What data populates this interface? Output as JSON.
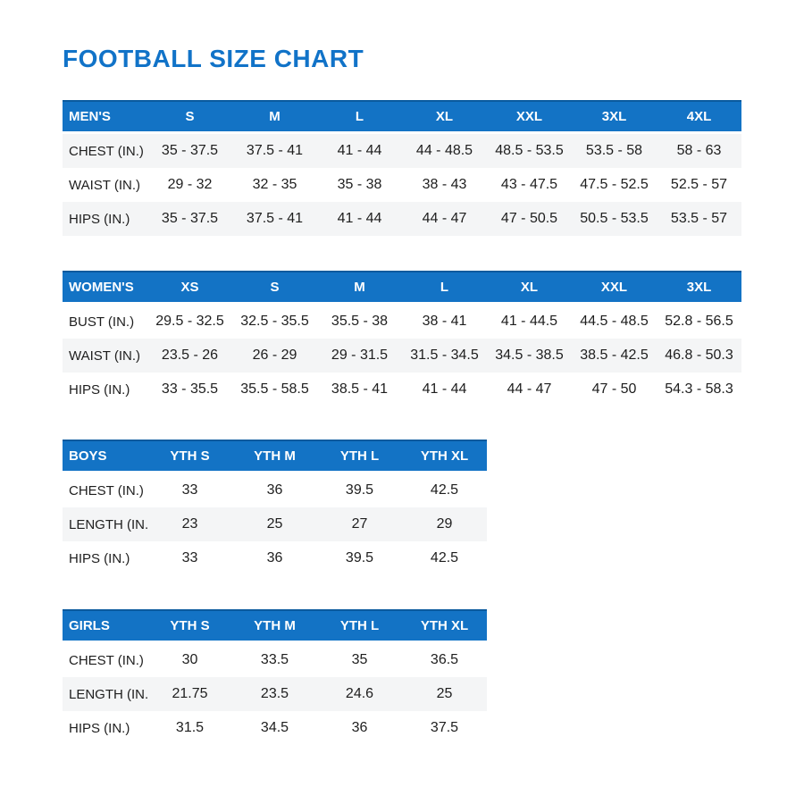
{
  "page": {
    "title": "FOOTBALL SIZE CHART"
  },
  "colors": {
    "title_blue": "#1173c8",
    "header_blue": "#1373c5",
    "header_top_border": "#0a5a9e",
    "stripe_gray": "#f4f5f6",
    "text_dark": "#1e1e1e"
  },
  "tables": [
    {
      "group_label": "MEN'S",
      "columns": [
        "S",
        "M",
        "L",
        "XL",
        "XXL",
        "3XL",
        "4XL"
      ],
      "rows": [
        {
          "label": "CHEST (IN.)",
          "values": [
            "35 - 37.5",
            "37.5 - 41",
            "41 - 44",
            "44 - 48.5",
            "48.5 - 53.5",
            "53.5 - 58",
            "58 - 63"
          ]
        },
        {
          "label": "WAIST (IN.)",
          "values": [
            "29 - 32",
            "32 - 35",
            "35 - 38",
            "38 - 43",
            "43 - 47.5",
            "47.5 - 52.5",
            "52.5 - 57"
          ]
        },
        {
          "label": "HIPS (IN.)",
          "values": [
            "35 - 37.5",
            "37.5 - 41",
            "41 - 44",
            "44 - 47",
            "47 - 50.5",
            "50.5 - 53.5",
            "53.5 - 57"
          ]
        }
      ]
    },
    {
      "group_label": "WOMEN'S",
      "columns": [
        "XS",
        "S",
        "M",
        "L",
        "XL",
        "XXL",
        "3XL"
      ],
      "rows": [
        {
          "label": "BUST (IN.)",
          "values": [
            "29.5 - 32.5",
            "32.5 - 35.5",
            "35.5 - 38",
            "38 - 41",
            "41 - 44.5",
            "44.5 - 48.5",
            "52.8 - 56.5"
          ]
        },
        {
          "label": "WAIST (IN.)",
          "values": [
            "23.5 - 26",
            "26 - 29",
            "29 - 31.5",
            "31.5 - 34.5",
            "34.5 - 38.5",
            "38.5 - 42.5",
            "46.8 - 50.3"
          ]
        },
        {
          "label": "HIPS (IN.)",
          "values": [
            "33 - 35.5",
            "35.5 - 58.5",
            "38.5 - 41",
            "41 - 44",
            "44 - 47",
            "47 - 50",
            "54.3 - 58.3"
          ]
        }
      ]
    },
    {
      "group_label": "BOYS",
      "columns": [
        "YTH S",
        "YTH M",
        "YTH L",
        "YTH XL"
      ],
      "rows": [
        {
          "label": "CHEST (IN.)",
          "values": [
            "33",
            "36",
            "39.5",
            "42.5"
          ]
        },
        {
          "label": "LENGTH (IN.)",
          "values": [
            "23",
            "25",
            "27",
            "29"
          ]
        },
        {
          "label": "HIPS (IN.)",
          "values": [
            "33",
            "36",
            "39.5",
            "42.5"
          ]
        }
      ]
    },
    {
      "group_label": "GIRLS",
      "columns": [
        "YTH S",
        "YTH M",
        "YTH L",
        "YTH XL"
      ],
      "rows": [
        {
          "label": "CHEST (IN.)",
          "values": [
            "30",
            "33.5",
            "35",
            "36.5"
          ]
        },
        {
          "label": "LENGTH (IN.)",
          "values": [
            "21.75",
            "23.5",
            "24.6",
            "25"
          ]
        },
        {
          "label": "HIPS (IN.)",
          "values": [
            "31.5",
            "34.5",
            "36",
            "37.5"
          ]
        }
      ]
    }
  ]
}
